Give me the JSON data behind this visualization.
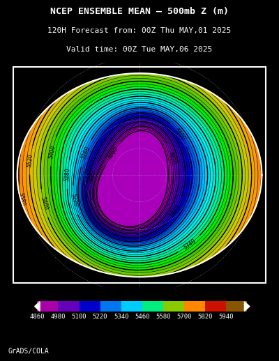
{
  "title_line1": "NCEP ENSEMBLE MEAN – 500mb Z (m)",
  "title_line2": "120H Forecast from: 00Z Thu MAY,01 2025",
  "title_line3": "Valid time: 00Z Tue MAY,06 2025",
  "colorbar_labels": [
    "4860",
    "4980",
    "5100",
    "5220",
    "5340",
    "5460",
    "5580",
    "5700",
    "5820",
    "5940"
  ],
  "colorbar_colors": [
    "#9900AA",
    "#8800AA",
    "#7700BB",
    "#6600CC",
    "#5500BB",
    "#4400AA",
    "#3300BB",
    "#2200CC",
    "#1100BB",
    "#0000CC",
    "#0020DD",
    "#0050EE",
    "#0088FF",
    "#00AAFF",
    "#00CCFF",
    "#00DDEE",
    "#00EEDD",
    "#00F0C0",
    "#00F098",
    "#00F060",
    "#00E800",
    "#30D800",
    "#60D000",
    "#90C800",
    "#C0C000",
    "#E0B800",
    "#F0A800",
    "#F09000",
    "#F07800",
    "#F06000",
    "#E84800",
    "#D83000",
    "#C81800",
    "#B80800",
    "#A81800",
    "#983800",
    "#886800",
    "#989868",
    "#A8A878",
    "#B8B888"
  ],
  "contour_levels": [
    4860,
    4880,
    4900,
    4920,
    4940,
    4960,
    4980,
    5000,
    5020,
    5040,
    5060,
    5080,
    5100,
    5120,
    5140,
    5160,
    5180,
    5200,
    5220,
    5240,
    5260,
    5280,
    5300,
    5320,
    5340,
    5360,
    5380,
    5400,
    5420,
    5440,
    5460,
    5480,
    5500,
    5520,
    5540,
    5560,
    5580,
    5600,
    5620,
    5640,
    5660,
    5680,
    5700,
    5720,
    5740,
    5760,
    5780,
    5800,
    5820,
    5840,
    5860,
    5880,
    5900,
    5920,
    5940
  ],
  "background_color": "#000000",
  "map_bg_color": "#CC8800",
  "credit": "GrADS/COLA",
  "figsize": [
    4.0,
    5.18
  ],
  "dpi": 100,
  "colorbar_segment_colors": [
    "#AA00AA",
    "#8800BB",
    "#6600CC",
    "#4400BB",
    "#2200AA",
    "#0000CC",
    "#0066DD",
    "#00AAFF",
    "#00CCFF",
    "#00EEDD",
    "#00F088",
    "#00E800",
    "#80D000",
    "#C8C000",
    "#F0A000",
    "#F07000",
    "#E84000",
    "#C81000",
    "#904000",
    "#886030"
  ]
}
